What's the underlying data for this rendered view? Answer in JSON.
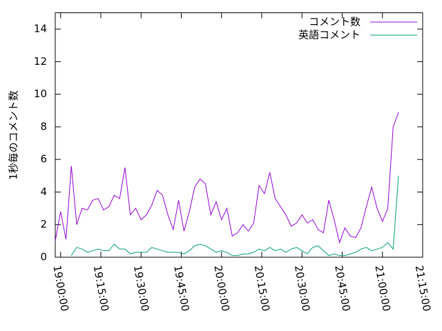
{
  "chart_data": {
    "type": "line",
    "ylabel": "1秒毎のコメント数",
    "x": [
      "18:58:00",
      "19:00:00",
      "19:02:00",
      "19:04:00",
      "19:06:00",
      "19:08:00",
      "19:10:00",
      "19:12:00",
      "19:14:00",
      "19:16:00",
      "19:18:00",
      "19:20:00",
      "19:22:00",
      "19:24:00",
      "19:26:00",
      "19:28:00",
      "19:30:00",
      "19:32:00",
      "19:34:00",
      "19:36:00",
      "19:38:00",
      "19:40:00",
      "19:42:00",
      "19:44:00",
      "19:46:00",
      "19:48:00",
      "19:50:00",
      "19:52:00",
      "19:54:00",
      "19:56:00",
      "19:58:00",
      "20:00:00",
      "20:02:00",
      "20:04:00",
      "20:06:00",
      "20:08:00",
      "20:10:00",
      "20:12:00",
      "20:14:00",
      "20:16:00",
      "20:18:00",
      "20:20:00",
      "20:22:00",
      "20:24:00",
      "20:26:00",
      "20:28:00",
      "20:30:00",
      "20:32:00",
      "20:34:00",
      "20:36:00",
      "20:38:00",
      "20:40:00",
      "20:42:00",
      "20:44:00",
      "20:46:00",
      "20:48:00",
      "20:50:00",
      "20:52:00",
      "20:54:00",
      "20:56:00",
      "20:58:00",
      "21:00:00",
      "21:02:00",
      "21:04:00",
      "21:06:00"
    ],
    "series": [
      {
        "name": "コメント数",
        "color": "#9400d3",
        "values": [
          1.0,
          2.8,
          1.1,
          5.6,
          2.0,
          3.0,
          2.9,
          3.5,
          3.6,
          2.9,
          3.1,
          3.8,
          3.6,
          5.5,
          2.6,
          3.0,
          2.3,
          2.6,
          3.2,
          4.1,
          3.8,
          2.6,
          1.7,
          3.5,
          1.6,
          2.8,
          4.3,
          4.8,
          4.5,
          2.6,
          3.4,
          2.3,
          3.0,
          1.3,
          1.5,
          2.0,
          1.6,
          2.1,
          4.4,
          3.9,
          5.2,
          3.6,
          3.1,
          2.6,
          1.9,
          2.1,
          2.6,
          2.1,
          2.3,
          1.7,
          1.5,
          3.5,
          2.3,
          0.9,
          1.8,
          1.3,
          1.2,
          1.8,
          3.1,
          4.3,
          3.0,
          2.2,
          3.0,
          8.0,
          8.9
        ]
      },
      {
        "name": "英語コメント",
        "color": "#009e73",
        "values": [
          null,
          null,
          null,
          0.1,
          0.6,
          0.5,
          0.3,
          0.4,
          0.5,
          0.4,
          0.4,
          0.8,
          0.5,
          0.5,
          0.2,
          0.3,
          0.3,
          0.3,
          0.6,
          0.5,
          0.4,
          0.3,
          0.3,
          0.3,
          0.2,
          0.4,
          0.7,
          0.8,
          0.7,
          0.5,
          0.3,
          0.4,
          0.3,
          0.1,
          0.1,
          0.2,
          0.2,
          0.3,
          0.5,
          0.4,
          0.6,
          0.4,
          0.5,
          0.3,
          0.5,
          0.6,
          0.4,
          0.2,
          0.6,
          0.7,
          0.4,
          0.1,
          0.2,
          0.1,
          0.1,
          0.2,
          0.3,
          0.5,
          0.6,
          0.4,
          0.5,
          0.6,
          0.9,
          0.5,
          5.0
        ]
      }
    ],
    "xlim": [
      "18:58:00",
      "21:15:00"
    ],
    "xticks": [
      "19:00:00",
      "19:15:00",
      "19:30:00",
      "19:45:00",
      "20:00:00",
      "20:15:00",
      "20:30:00",
      "20:45:00",
      "21:00:00",
      "21:15:00"
    ],
    "ylim": [
      0,
      15
    ],
    "yticks": [
      0,
      2,
      4,
      6,
      8,
      10,
      12,
      14
    ],
    "legend": "top-right"
  }
}
